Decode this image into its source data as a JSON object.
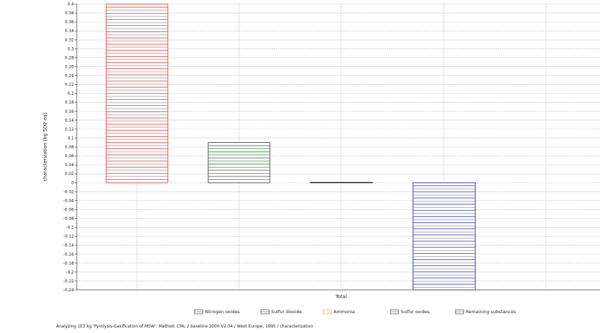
{
  "chart_data": {
    "type": "bar",
    "ylabel": "characterization [kg SO2 eq]",
    "xlabel": "Total",
    "ylim": [
      -0.24,
      0.4
    ],
    "ytick_step": 0.02,
    "grid": true,
    "legend_position": "bottom",
    "series": [
      {
        "name": "Nitrogen oxides",
        "value": 0.4,
        "stripe_colors": [
          "#e03030",
          "#909090"
        ]
      },
      {
        "name": "Sulfur dioxide",
        "value": 0.09,
        "stripe_colors": [
          "#404040",
          "#28a028"
        ]
      },
      {
        "name": "Ammonia",
        "value": 0.001,
        "stripe_colors": [
          "#333333",
          "#c8b400"
        ]
      },
      {
        "name": "Sulfur oxides",
        "value": -0.24,
        "stripe_colors": [
          "#2020c0",
          "#909090"
        ]
      }
    ],
    "legend": [
      {
        "label": "Nitrogen oxides",
        "swatch_color": "#555555"
      },
      {
        "label": "Sulfur dioxide",
        "swatch_color": "#555555"
      },
      {
        "label": "Ammonia",
        "swatch_color": "#d4c24a"
      },
      {
        "label": "Sulfur oxides",
        "swatch_color": "#555555"
      },
      {
        "label": "Remaining substances",
        "swatch_color": "#555555"
      }
    ]
  },
  "footer": "Analyzing 1E3 kg 'Pyrolysis-Gasification of MSW';  Method: CML 2 baseline 2000 V2.04 / West Europe, 1995 / characterization"
}
